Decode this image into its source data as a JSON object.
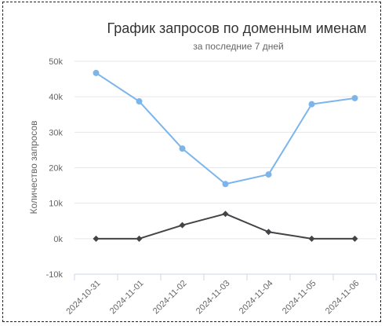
{
  "chart_data": {
    "type": "line",
    "title": "График запросов по доменным именам",
    "subtitle": "за последние 7 дней",
    "ylabel": "Количество запросов",
    "xlabel": "",
    "categories": [
      "2024-10-31",
      "2024-11-01",
      "2024-11-02",
      "2024-11-03",
      "2024-11-04",
      "2024-11-05",
      "2024-11-06"
    ],
    "yticks": [
      "-10k",
      "0k",
      "10k",
      "20k",
      "30k",
      "40k",
      "50k"
    ],
    "ylim": [
      -10000,
      50000
    ],
    "grid": true,
    "series": [
      {
        "color": "#7cb5ec",
        "values": [
          46700,
          38700,
          25400,
          15400,
          18100,
          37900,
          39600
        ]
      },
      {
        "color": "#434348",
        "values": [
          0,
          0,
          3800,
          7000,
          1900,
          0,
          0
        ]
      }
    ]
  }
}
